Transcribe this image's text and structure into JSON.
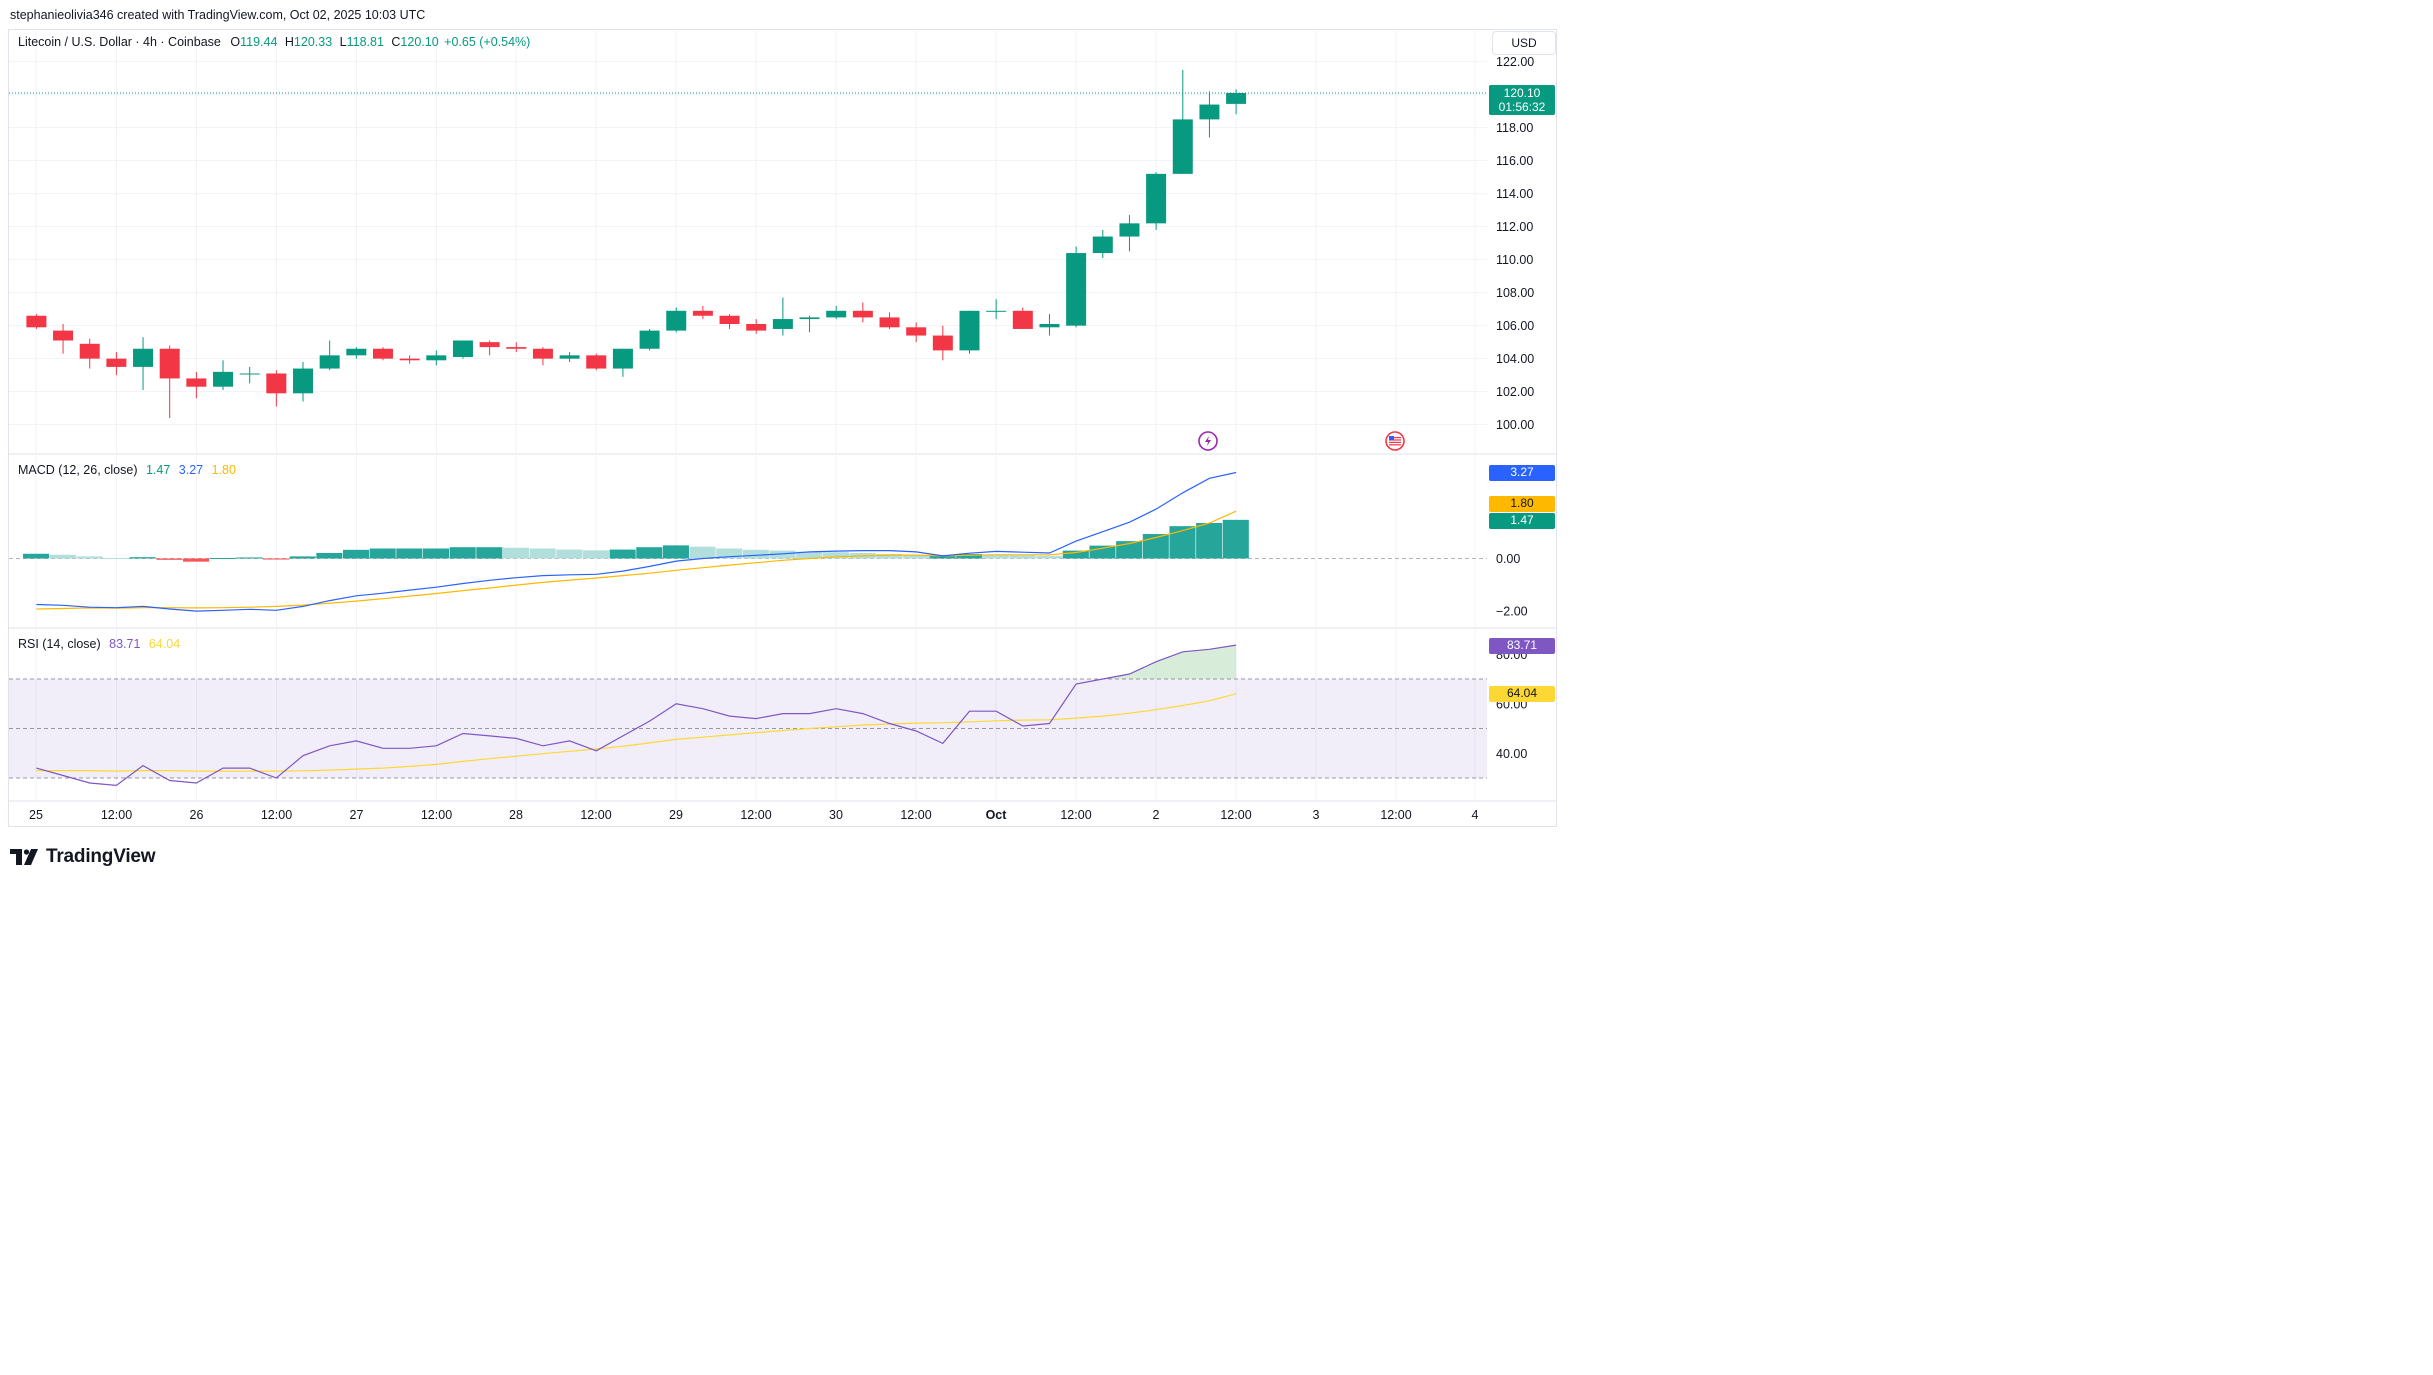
{
  "header": {
    "created_by": "stephanieolivia346 created with TradingView.com, Oct 02, 2025 10:03 UTC"
  },
  "legend": {
    "symbol": "Litecoin / U.S. Dollar · 4h · Coinbase",
    "o_label": "O",
    "o": "119.44",
    "h_label": "H",
    "h": "120.33",
    "l_label": "L",
    "l": "118.81",
    "c_label": "C",
    "c": "120.10",
    "change": "+0.65 (+0.54%)"
  },
  "currency": "USD",
  "last_price": {
    "price": "120.10",
    "countdown": "01:56:32"
  },
  "macd": {
    "label": "MACD (12, 26, close)",
    "hist": "1.47",
    "macd": "3.27",
    "signal": "1.80"
  },
  "rsi": {
    "label": "RSI (14, close)",
    "rsi": "83.71",
    "ma": "64.04"
  },
  "logo": {
    "text": "TradingView"
  },
  "colors": {
    "up": "#089981",
    "down": "#f23645",
    "macd_line": "#2962ff",
    "signal_line": "#ffb800",
    "rsi_line": "#7e57c2",
    "rsi_ma": "#fdd835"
  },
  "chart_data": [
    {
      "type": "candlestick",
      "title": "Litecoin / U.S. Dollar · 4h · Coinbase",
      "ylim": [
        99,
        123
      ],
      "yticks": [
        "122.00",
        "120.00",
        "118.00",
        "116.00",
        "114.00",
        "112.00",
        "110.00",
        "108.00",
        "106.00",
        "104.00",
        "102.00",
        "100.00"
      ],
      "xticks": [
        "25",
        "12:00",
        "26",
        "12:00",
        "27",
        "12:00",
        "28",
        "12:00",
        "29",
        "12:00",
        "30",
        "12:00",
        "Oct",
        "12:00",
        "2",
        "12:00",
        "3",
        "12:00",
        "4"
      ],
      "candles": [
        {
          "o": 106.6,
          "h": 106.7,
          "l": 105.8,
          "c": 105.9
        },
        {
          "o": 105.7,
          "h": 106.1,
          "l": 104.3,
          "c": 105.1
        },
        {
          "o": 104.9,
          "h": 105.2,
          "l": 103.4,
          "c": 104.0
        },
        {
          "o": 104.0,
          "h": 104.4,
          "l": 103.0,
          "c": 103.5
        },
        {
          "o": 103.5,
          "h": 105.3,
          "l": 102.1,
          "c": 104.6
        },
        {
          "o": 104.6,
          "h": 104.8,
          "l": 100.4,
          "c": 102.8
        },
        {
          "o": 102.8,
          "h": 103.2,
          "l": 101.6,
          "c": 102.3
        },
        {
          "o": 102.3,
          "h": 103.9,
          "l": 102.1,
          "c": 103.2
        },
        {
          "o": 103.1,
          "h": 103.5,
          "l": 102.5,
          "c": 103.1
        },
        {
          "o": 103.1,
          "h": 103.3,
          "l": 101.1,
          "c": 101.9
        },
        {
          "o": 101.9,
          "h": 103.8,
          "l": 101.4,
          "c": 103.4
        },
        {
          "o": 103.4,
          "h": 105.1,
          "l": 103.3,
          "c": 104.2
        },
        {
          "o": 104.2,
          "h": 104.7,
          "l": 104.0,
          "c": 104.6
        },
        {
          "o": 104.6,
          "h": 104.7,
          "l": 103.9,
          "c": 104.0
        },
        {
          "o": 104.0,
          "h": 104.2,
          "l": 103.7,
          "c": 103.9
        },
        {
          "o": 103.9,
          "h": 104.5,
          "l": 103.6,
          "c": 104.2
        },
        {
          "o": 104.1,
          "h": 105.1,
          "l": 104.0,
          "c": 105.1
        },
        {
          "o": 105.0,
          "h": 105.1,
          "l": 104.2,
          "c": 104.7
        },
        {
          "o": 104.7,
          "h": 105.0,
          "l": 104.4,
          "c": 104.6
        },
        {
          "o": 104.6,
          "h": 104.7,
          "l": 103.6,
          "c": 104.0
        },
        {
          "o": 104.0,
          "h": 104.4,
          "l": 103.8,
          "c": 104.2
        },
        {
          "o": 104.2,
          "h": 104.3,
          "l": 103.3,
          "c": 103.4
        },
        {
          "o": 103.4,
          "h": 104.6,
          "l": 102.9,
          "c": 104.6
        },
        {
          "o": 104.6,
          "h": 105.8,
          "l": 104.5,
          "c": 105.7
        },
        {
          "o": 105.7,
          "h": 107.1,
          "l": 105.6,
          "c": 106.9
        },
        {
          "o": 106.9,
          "h": 107.2,
          "l": 106.4,
          "c": 106.6
        },
        {
          "o": 106.6,
          "h": 106.7,
          "l": 105.8,
          "c": 106.1
        },
        {
          "o": 106.1,
          "h": 106.4,
          "l": 105.5,
          "c": 105.7
        },
        {
          "o": 105.8,
          "h": 107.7,
          "l": 105.4,
          "c": 106.4
        },
        {
          "o": 106.4,
          "h": 106.6,
          "l": 105.6,
          "c": 106.5
        },
        {
          "o": 106.5,
          "h": 107.2,
          "l": 106.4,
          "c": 106.9
        },
        {
          "o": 106.9,
          "h": 107.4,
          "l": 106.2,
          "c": 106.5
        },
        {
          "o": 106.5,
          "h": 106.8,
          "l": 105.8,
          "c": 105.9
        },
        {
          "o": 105.9,
          "h": 106.2,
          "l": 105.0,
          "c": 105.4
        },
        {
          "o": 105.4,
          "h": 106.0,
          "l": 103.9,
          "c": 104.5
        },
        {
          "o": 104.5,
          "h": 106.9,
          "l": 104.3,
          "c": 106.9
        },
        {
          "o": 106.9,
          "h": 107.6,
          "l": 106.4,
          "c": 106.9
        },
        {
          "o": 106.9,
          "h": 107.1,
          "l": 105.8,
          "c": 105.8
        },
        {
          "o": 105.9,
          "h": 106.7,
          "l": 105.4,
          "c": 106.1
        },
        {
          "o": 106.0,
          "h": 110.8,
          "l": 105.9,
          "c": 110.4
        },
        {
          "o": 110.4,
          "h": 111.8,
          "l": 110.1,
          "c": 111.4
        },
        {
          "o": 111.4,
          "h": 112.7,
          "l": 110.5,
          "c": 112.2
        },
        {
          "o": 112.2,
          "h": 115.3,
          "l": 111.8,
          "c": 115.2
        },
        {
          "o": 115.2,
          "h": 121.5,
          "l": 115.2,
          "c": 118.5
        },
        {
          "o": 118.5,
          "h": 120.2,
          "l": 117.4,
          "c": 119.4
        },
        {
          "o": 119.44,
          "h": 120.33,
          "l": 118.81,
          "c": 120.1
        }
      ]
    },
    {
      "type": "bar",
      "title": "MACD (12, 26, close)",
      "ylim": [
        -3,
        6.4
      ],
      "yticks": [
        "0.00",
        "−2.00"
      ],
      "histogram": [
        0.18,
        0.14,
        0.08,
        0.02,
        0.05,
        -0.05,
        -0.12,
        0.02,
        0.04,
        -0.04,
        0.08,
        0.21,
        0.33,
        0.38,
        0.38,
        0.38,
        0.43,
        0.43,
        0.41,
        0.38,
        0.34,
        0.31,
        0.34,
        0.43,
        0.5,
        0.45,
        0.38,
        0.33,
        0.3,
        0.26,
        0.24,
        0.21,
        0.17,
        0.12,
        0.12,
        0.17,
        0.14,
        0.12,
        0.1,
        0.3,
        0.49,
        0.66,
        0.93,
        1.23,
        1.35,
        1.47
      ],
      "macd": [
        -1.75,
        -1.78,
        -1.85,
        -1.87,
        -1.82,
        -1.92,
        -2.0,
        -1.97,
        -1.93,
        -1.97,
        -1.82,
        -1.6,
        -1.42,
        -1.32,
        -1.2,
        -1.09,
        -0.95,
        -0.83,
        -0.73,
        -0.65,
        -0.62,
        -0.6,
        -0.48,
        -0.3,
        -0.1,
        0.0,
        0.07,
        0.12,
        0.18,
        0.25,
        0.28,
        0.3,
        0.3,
        0.25,
        0.1,
        0.2,
        0.27,
        0.24,
        0.21,
        0.66,
        1.02,
        1.38,
        1.88,
        2.5,
        3.05,
        3.27
      ],
      "signal": [
        -1.92,
        -1.9,
        -1.88,
        -1.89,
        -1.87,
        -1.87,
        -1.88,
        -1.87,
        -1.85,
        -1.82,
        -1.77,
        -1.7,
        -1.62,
        -1.53,
        -1.43,
        -1.33,
        -1.22,
        -1.12,
        -1.01,
        -0.91,
        -0.82,
        -0.74,
        -0.65,
        -0.56,
        -0.45,
        -0.35,
        -0.25,
        -0.16,
        -0.07,
        0.0,
        0.06,
        0.1,
        0.13,
        0.13,
        0.1,
        0.12,
        0.14,
        0.14,
        0.14,
        0.23,
        0.39,
        0.57,
        0.8,
        1.06,
        1.35,
        1.8
      ]
    },
    {
      "type": "line",
      "title": "RSI (14, close)",
      "ylim": [
        24,
        88
      ],
      "yticks": [
        "80.00",
        "60.00",
        "40.00"
      ],
      "bands": [
        70,
        50,
        30
      ],
      "series": [
        {
          "name": "RSI",
          "values": [
            34,
            31,
            28,
            27,
            35,
            29,
            28,
            34,
            34,
            30,
            39,
            43,
            45,
            42,
            42,
            43,
            48,
            47,
            46,
            43,
            45,
            41,
            47,
            53,
            60,
            58,
            55,
            54,
            56,
            56,
            58,
            56,
            52,
            49,
            44,
            57,
            57,
            51,
            52,
            68,
            70,
            72,
            77,
            81,
            82,
            83.71
          ]
        },
        {
          "name": "MA",
          "values": [
            33,
            33,
            33,
            32.8,
            33,
            33,
            32.8,
            32.8,
            32.8,
            32.8,
            32.9,
            33.2,
            33.6,
            34.0,
            34.7,
            35.5,
            36.7,
            37.8,
            38.8,
            39.8,
            40.8,
            41.7,
            42.8,
            44.2,
            45.6,
            46.5,
            47.4,
            48.3,
            49.2,
            50.0,
            50.7,
            51.4,
            51.8,
            52.2,
            52.3,
            52.7,
            53.1,
            53.4,
            53.5,
            54.2,
            55.0,
            56.2,
            57.6,
            59.3,
            61.2,
            64.04
          ]
        }
      ]
    }
  ]
}
